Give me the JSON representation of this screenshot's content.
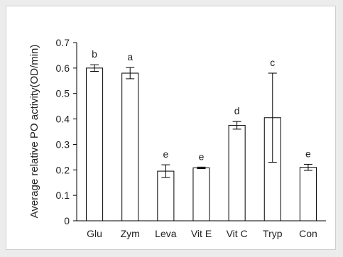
{
  "chart_data": {
    "type": "bar",
    "title": "",
    "xlabel": "",
    "ylabel": "Average relative PO activity(OD/min)",
    "ylim": [
      0,
      0.7
    ],
    "yticks": [
      0,
      0.1,
      0.2,
      0.3,
      0.4,
      0.5,
      0.6,
      0.7
    ],
    "ytick_labels": [
      "0",
      "0.1",
      "0.2",
      "0.3",
      "0.4",
      "0.5",
      "0.6",
      "0.7"
    ],
    "categories": [
      "Glu",
      "Zym",
      "Leva",
      "Vit E",
      "Vit C",
      "Tryp",
      "Con"
    ],
    "values": [
      0.6,
      0.58,
      0.195,
      0.208,
      0.375,
      0.405,
      0.21
    ],
    "error": [
      0.013,
      0.022,
      0.025,
      0.003,
      0.015,
      0.175,
      0.012
    ],
    "significance_letters": [
      "b",
      "a",
      "e",
      "e",
      "d",
      "c",
      "e"
    ],
    "grid": false,
    "legend": "none",
    "bar_fill": "#ffffff",
    "bar_stroke": "#000000"
  }
}
